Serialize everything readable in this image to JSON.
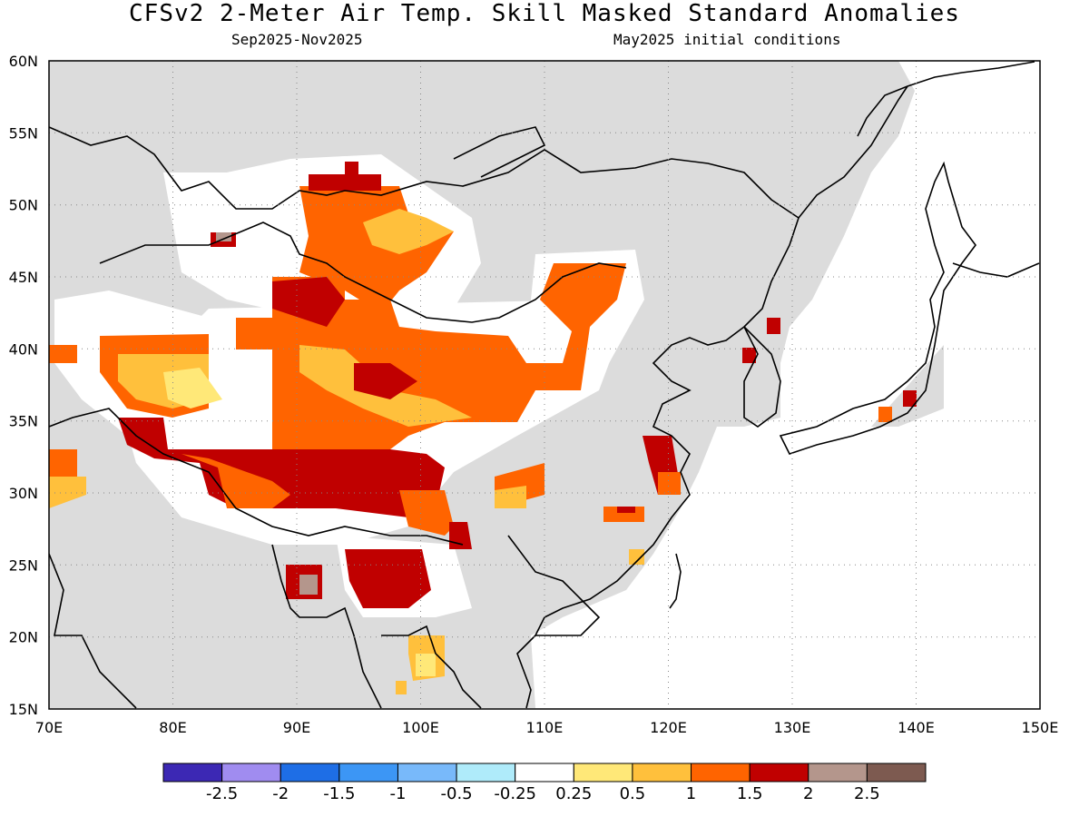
{
  "title": "CFSv2 2-Meter Air Temp. Skill Masked Standard Anomalies",
  "subtitle_left": "Sep2025-Nov2025",
  "subtitle_right": "May2025 initial conditions",
  "colors": {
    "land_grey": "#dcdcdc",
    "frame": "#000000",
    "grid": "#888888"
  },
  "map": {
    "lon_range": [
      70,
      150
    ],
    "lat_range": [
      15,
      60
    ],
    "x_ticks": [
      "70E",
      "80E",
      "90E",
      "100E",
      "110E",
      "120E",
      "130E",
      "140E",
      "150E"
    ],
    "y_ticks": [
      "15N",
      "20N",
      "25N",
      "30N",
      "35N",
      "40N",
      "45N",
      "50N",
      "55N",
      "60N"
    ],
    "grid": "dotted"
  },
  "colorbar": {
    "colors": [
      "#3c28b4",
      "#a08cf0",
      "#1e6ee6",
      "#3c96f5",
      "#78b9fa",
      "#afebfa",
      "#ffffff",
      "#ffe878",
      "#ffc03c",
      "#ff6400",
      "#c00000",
      "#b4968c",
      "#7d5a50"
    ],
    "labels": [
      "-2.5",
      "-2",
      "-1.5",
      "-1",
      "-0.5",
      "-0.25",
      "0.25",
      "0.5",
      "1",
      "1.5",
      "2",
      "2.5"
    ]
  }
}
